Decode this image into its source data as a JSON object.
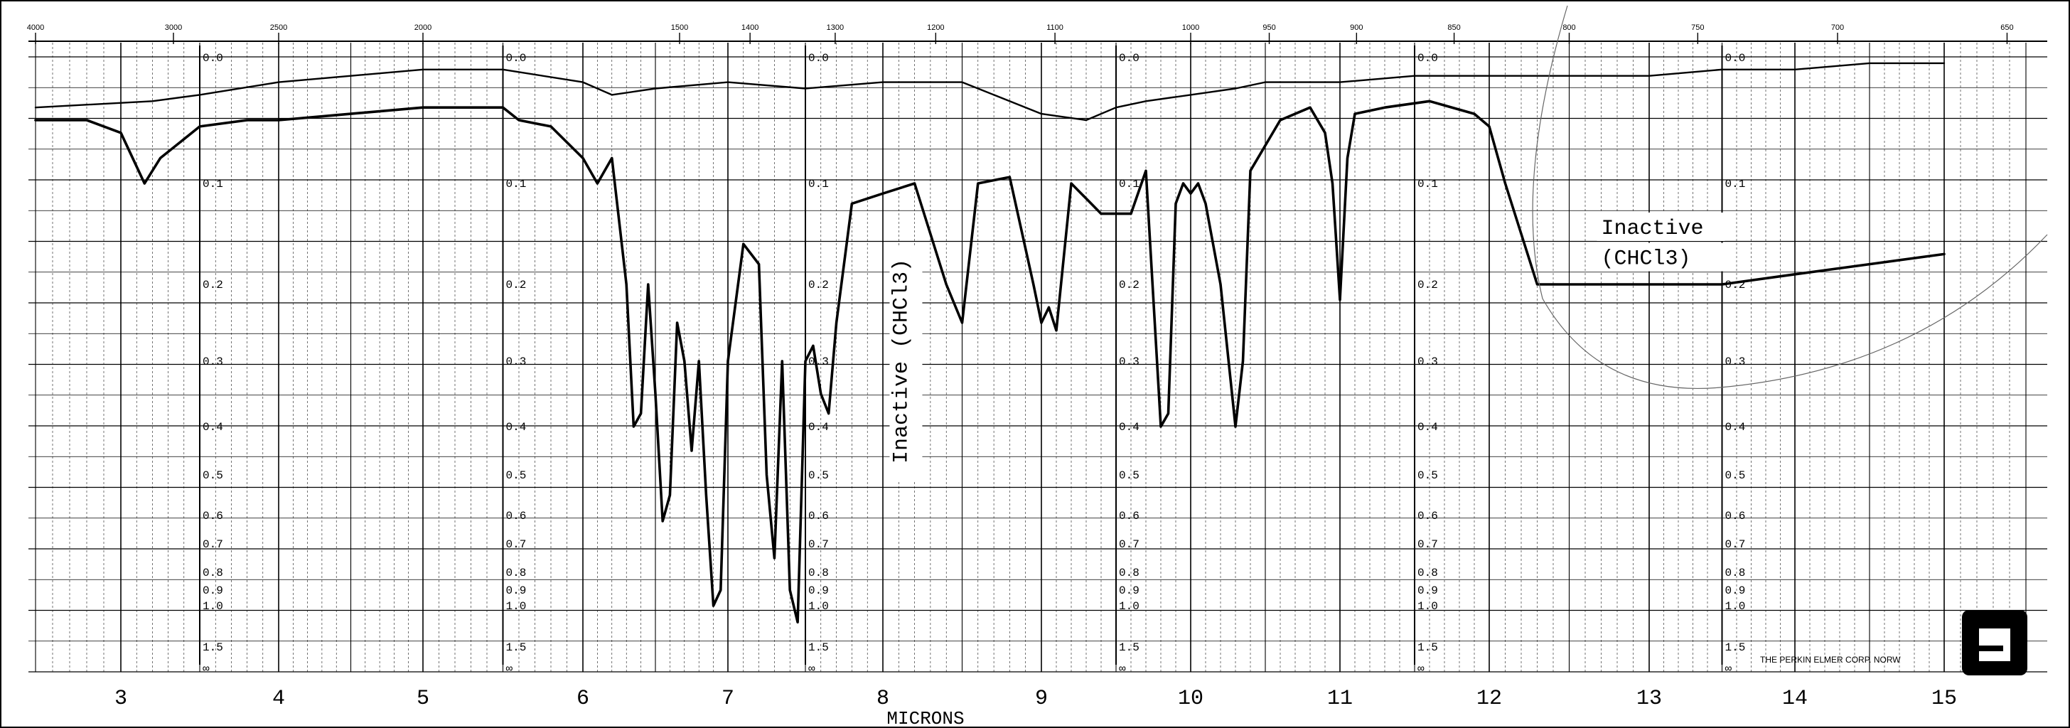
{
  "chart_data": {
    "type": "line",
    "title": "",
    "xlabel": "MICRONS",
    "ylabel": "",
    "micron_ticks": [
      "3",
      "4",
      "5",
      "6",
      "7",
      "8",
      "9",
      "10",
      "11",
      "12",
      "13",
      "14",
      "15"
    ],
    "wavenumber_ticks": [
      "4000",
      "3000",
      "2500",
      "2000",
      "1500",
      "1400",
      "1300",
      "1200",
      "1100",
      "1000",
      "950",
      "900",
      "850",
      "800",
      "750",
      "700",
      "650"
    ],
    "absorbance_ticks": [
      "0.0",
      "0.1",
      "0.2",
      "0.3",
      "0.4",
      "0.5",
      "0.6",
      "0.7",
      "0.8",
      "0.9",
      "1.0",
      "1.5",
      "∞"
    ],
    "xlim": [
      2.5,
      15.5
    ],
    "ylim": [
      0,
      1.5
    ],
    "grid": true,
    "series": [
      {
        "x": [
          2.5,
          3.2,
          3.5,
          4.0,
          4.5,
          5.0,
          5.5,
          6.0,
          6.2,
          6.5,
          7.0,
          7.5,
          8.0,
          8.5,
          9.0,
          9.3,
          9.5,
          9.7,
          10.0,
          10.3,
          10.5,
          11.0,
          11.5,
          12.0,
          12.3,
          13.0,
          13.5,
          14.0,
          14.5,
          15.0
        ],
        "y": [
          0.04,
          0.035,
          0.03,
          0.02,
          0.015,
          0.01,
          0.01,
          0.02,
          0.03,
          0.025,
          0.02,
          0.025,
          0.02,
          0.02,
          0.045,
          0.05,
          0.04,
          0.035,
          0.03,
          0.025,
          0.02,
          0.02,
          0.015,
          0.015,
          0.015,
          0.015,
          0.01,
          0.01,
          0.005,
          0.005
        ]
      },
      {
        "x": [
          2.5,
          2.8,
          3.0,
          3.15,
          3.25,
          3.5,
          3.8,
          4.0,
          4.5,
          5.0,
          5.5,
          5.6,
          5.8,
          6.0,
          6.1,
          6.2,
          6.3,
          6.35,
          6.4,
          6.45,
          6.5,
          6.55,
          6.6,
          6.65,
          6.7,
          6.75,
          6.8,
          6.85,
          6.9,
          6.95,
          7.0,
          7.1,
          7.2,
          7.25,
          7.3,
          7.35,
          7.4,
          7.45,
          7.5,
          7.55,
          7.6,
          7.65,
          7.7,
          7.8,
          8.0,
          8.2,
          8.4,
          8.5,
          8.6,
          8.8,
          8.95,
          9.0,
          9.05,
          9.1,
          9.2,
          9.4,
          9.6,
          9.7,
          9.8,
          9.85,
          9.9,
          9.95,
          10.0,
          10.05,
          10.1,
          10.2,
          10.3,
          10.35,
          10.4,
          10.6,
          10.8,
          10.9,
          10.95,
          11.0,
          11.05,
          11.1,
          11.3,
          11.6,
          11.9,
          12.0,
          12.1,
          12.2,
          12.3,
          12.5,
          13.0,
          13.2,
          13.5,
          14.0,
          14.5,
          15.0
        ],
        "y": [
          0.05,
          0.05,
          0.06,
          0.1,
          0.08,
          0.055,
          0.05,
          0.05,
          0.045,
          0.04,
          0.04,
          0.05,
          0.055,
          0.08,
          0.1,
          0.08,
          0.2,
          0.4,
          0.38,
          0.2,
          0.35,
          0.62,
          0.55,
          0.25,
          0.3,
          0.45,
          0.3,
          0.55,
          1.0,
          0.9,
          0.3,
          0.16,
          0.18,
          0.5,
          0.75,
          0.3,
          0.9,
          1.2,
          0.3,
          0.28,
          0.35,
          0.38,
          0.25,
          0.12,
          0.11,
          0.1,
          0.2,
          0.25,
          0.1,
          0.095,
          0.2,
          0.25,
          0.23,
          0.26,
          0.1,
          0.13,
          0.13,
          0.09,
          0.4,
          0.38,
          0.12,
          0.1,
          0.11,
          0.1,
          0.12,
          0.2,
          0.4,
          0.3,
          0.09,
          0.05,
          0.04,
          0.06,
          0.1,
          0.22,
          0.08,
          0.045,
          0.04,
          0.035,
          0.045,
          0.055,
          0.1,
          0.15,
          0.2,
          0.2,
          0.2,
          0.2,
          0.2,
          0.19,
          0.18,
          0.17
        ]
      }
    ],
    "annotations": [
      {
        "text": "Inactive (CHCl3)",
        "x": 8.15,
        "y": 0.3,
        "orientation": "vertical"
      },
      {
        "text": "Inactive",
        "x": 12.7,
        "y": 0.15
      },
      {
        "text": "(CHCl3)",
        "x": 12.7,
        "y": 0.18
      }
    ],
    "footer": "THE PERKIN ELMER CORP. NORW"
  }
}
